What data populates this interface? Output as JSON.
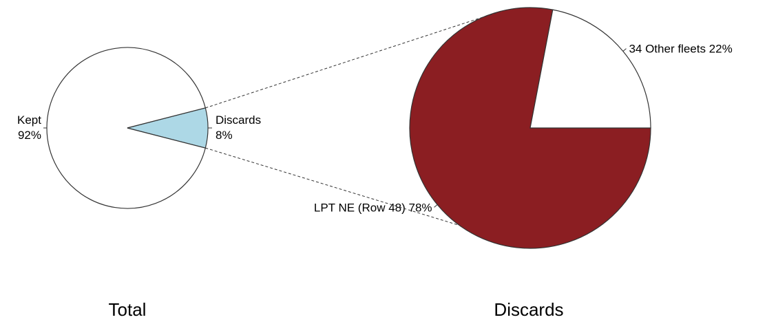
{
  "colors": {
    "background": "#ffffff",
    "discards_slice": "#add8e6",
    "lpt_slice": "#8b1e22",
    "other_slice": "#ffffff",
    "outline": "#333333"
  },
  "chart_data": [
    {
      "type": "pie",
      "title": "Total",
      "slices": [
        {
          "label": "Kept",
          "percent_label": "92%",
          "value": 92,
          "color": "#ffffff"
        },
        {
          "label": "Discards",
          "percent_label": "8%",
          "value": 8,
          "color": "#add8e6"
        }
      ]
    },
    {
      "type": "pie",
      "title": "Discards",
      "slices": [
        {
          "label": "34 Other fleets 22%",
          "value": 22,
          "color": "#ffffff"
        },
        {
          "label": "LPT NE (Row 48) 78%",
          "value": 78,
          "color": "#8b1e22"
        }
      ]
    }
  ]
}
